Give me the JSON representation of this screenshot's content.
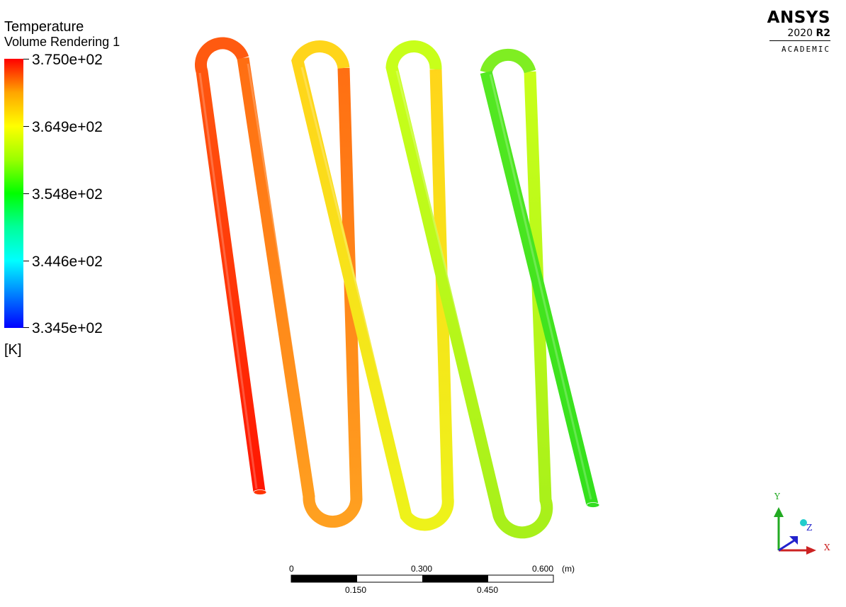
{
  "legend": {
    "title": "Temperature",
    "subtitle": "Volume Rendering 1",
    "ticks": [
      "3.750e+02",
      "3.649e+02",
      "3.548e+02",
      "3.446e+02",
      "3.345e+02"
    ],
    "unit": "[K]",
    "max": 375.0,
    "min": 334.5
  },
  "brand": {
    "name": "ANSYS",
    "year": "2020",
    "release": "R2",
    "edition": "ACADEMIC"
  },
  "scale_bar": {
    "unit": "(m)",
    "top_labels": [
      "0",
      "0.300",
      "0.600"
    ],
    "bottom_labels": [
      "0.150",
      "0.450"
    ]
  },
  "triad": {
    "x": "X",
    "y": "Y",
    "z": "Z"
  },
  "colors": {
    "red": "#ff1a00",
    "orange": "#ff8000",
    "yellow": "#e6ff1a",
    "green": "#33ee22"
  }
}
